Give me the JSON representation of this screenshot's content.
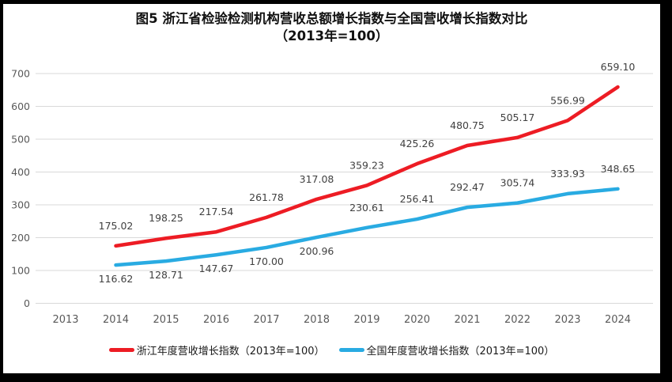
{
  "figure": {
    "title_line1": "图5  浙江省检验检测机构营收总额增长指数与全国营收增长指数对比",
    "title_line2": "（2013年=100）"
  },
  "chart_data": {
    "type": "line",
    "title": "图5 浙江省检验检测机构营收总额增长指数与全国营收增长指数对比（2013年=100）",
    "xlabel": "",
    "ylabel": "",
    "categories": [
      2013,
      2014,
      2015,
      2016,
      2017,
      2018,
      2019,
      2020,
      2021,
      2022,
      2023,
      2024
    ],
    "ylim": [
      0,
      700
    ],
    "yticks": [
      0,
      100,
      200,
      300,
      400,
      500,
      600,
      700
    ],
    "grid": "horizontal",
    "legend_position": "bottom",
    "data_labels": true,
    "series": [
      {
        "name": "浙江年度营收增长指数（2013年=100）",
        "color": "#ED1C24",
        "values": [
          null,
          175.02,
          198.25,
          217.54,
          261.78,
          317.08,
          359.23,
          425.26,
          480.75,
          505.17,
          556.99,
          659.1
        ],
        "label_positions": [
          null,
          "above",
          "above",
          "above",
          "above",
          "above",
          "above",
          "above",
          "above",
          "above",
          "above",
          "above"
        ]
      },
      {
        "name": "全国年度营收增长指数（2013年=100）",
        "color": "#29ABE2",
        "values": [
          null,
          116.62,
          128.71,
          147.67,
          170.0,
          200.96,
          230.61,
          256.41,
          292.47,
          305.74,
          333.93,
          348.65
        ],
        "label_positions": [
          null,
          "below",
          "below",
          "below",
          "below",
          "below",
          "above",
          "above",
          "above",
          "above",
          "above",
          "above"
        ]
      }
    ],
    "style": {
      "gridline_color": "#D9D9D9",
      "axis_label_color": "#595959",
      "data_label_color": "#404040"
    }
  },
  "legend": {
    "items": [
      {
        "label": "浙江年度营收增长指数（2013年=100）",
        "color": "#ED1C24"
      },
      {
        "label": "全国年度营收增长指数（2013年=100）",
        "color": "#29ABE2"
      }
    ]
  }
}
